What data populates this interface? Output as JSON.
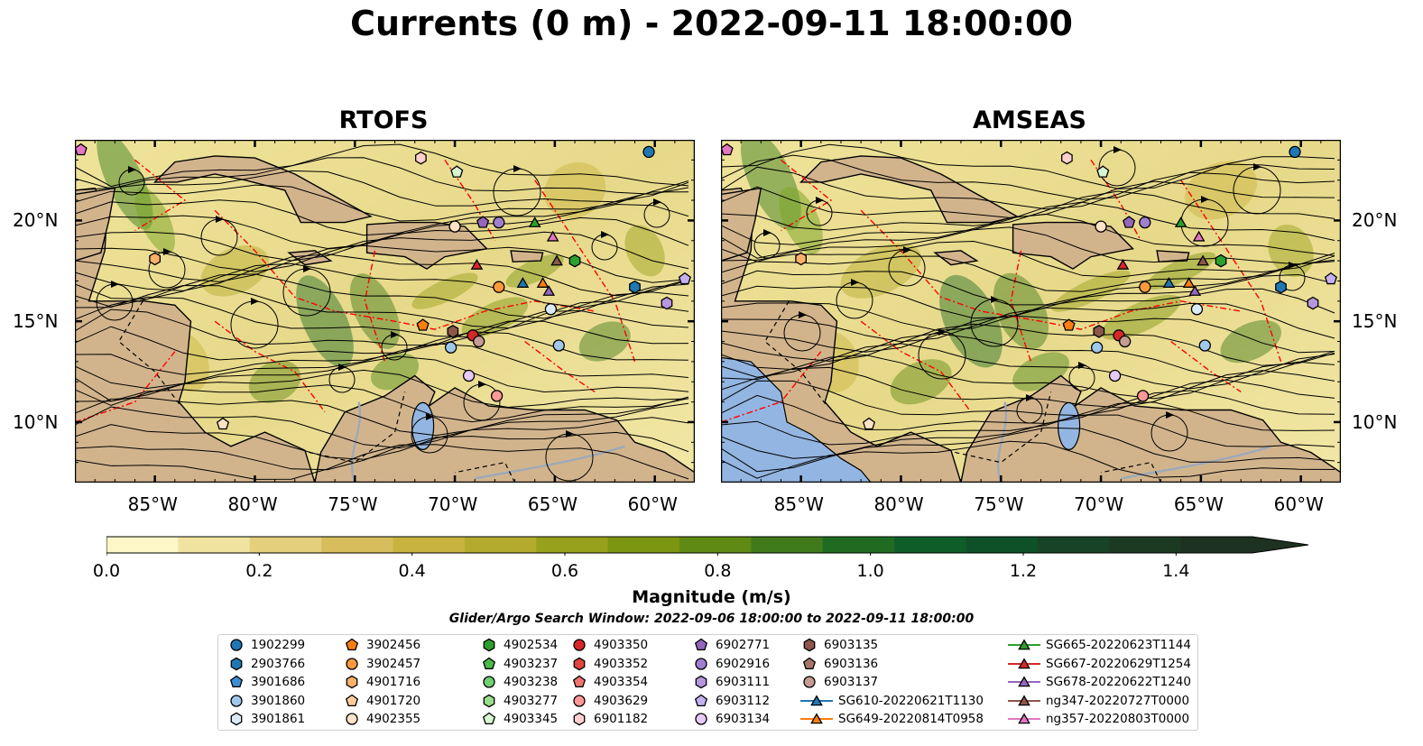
{
  "title": "Currents (0 m) - 2022-09-11 18:00:00",
  "panels": [
    {
      "title": "RTOFS"
    },
    {
      "title": "AMSEAS"
    }
  ],
  "axes": {
    "x_ticks": [
      "85°W",
      "80°W",
      "75°W",
      "70°W",
      "65°W",
      "60°W"
    ],
    "x_tick_values": [
      -85,
      -80,
      -75,
      -70,
      -65,
      -60
    ],
    "y_ticks": [
      "20°N",
      "15°N",
      "10°N"
    ],
    "y_tick_values": [
      20,
      15,
      10
    ],
    "lon_range": [
      -89,
      -58
    ],
    "lat_range": [
      7,
      24
    ]
  },
  "colorbar": {
    "label": "Magnitude (m/s)",
    "ticks": [
      "0.0",
      "0.2",
      "0.4",
      "0.6",
      "0.8",
      "1.0",
      "1.2",
      "1.4"
    ],
    "tick_values": [
      0.0,
      0.2,
      0.4,
      0.6,
      0.8,
      1.0,
      1.2,
      1.4
    ],
    "range": [
      0,
      1.5
    ],
    "extend": "max",
    "colors": [
      "#fdf7c7",
      "#f0e3a0",
      "#e3cf7c",
      "#d8bd5c",
      "#c9b340",
      "#b3ab2e",
      "#97a11b",
      "#7c9612",
      "#5f8a14",
      "#3f7a1b",
      "#1f6b22",
      "#0f5e2a",
      "#0e5028",
      "#184326",
      "#1c3a22",
      "#1d3220"
    ]
  },
  "search_window": "Glider/Argo Search Window: 2022-09-06 18:00:00 to 2022-09-11 18:00:00",
  "colors": {
    "land": "#d2b48c",
    "water_gray": "#9ea9b8",
    "lake_blue": "#93b5e1",
    "eez_line": "#ff0000",
    "streamline": "#000000"
  },
  "legend": [
    {
      "label": "1902299",
      "marker": "circle",
      "color": "#1f77b4"
    },
    {
      "label": "2903766",
      "marker": "hexagon",
      "color": "#1f77b4"
    },
    {
      "label": "3901686",
      "marker": "pentagon",
      "color": "#3d8fd1"
    },
    {
      "label": "3901860",
      "marker": "circle",
      "color": "#9fc8ea"
    },
    {
      "label": "3901861",
      "marker": "hexagon",
      "color": "#dbeaf7"
    },
    {
      "label": "3902456",
      "marker": "pentagon",
      "color": "#ff7f0e"
    },
    {
      "label": "3902457",
      "marker": "circle",
      "color": "#ff9a3c"
    },
    {
      "label": "4901716",
      "marker": "hexagon",
      "color": "#ffb06b"
    },
    {
      "label": "4901720",
      "marker": "pentagon",
      "color": "#ffcc99"
    },
    {
      "label": "4902355",
      "marker": "circle",
      "color": "#ffe3c6"
    },
    {
      "label": "4902534",
      "marker": "hexagon",
      "color": "#2ca02c"
    },
    {
      "label": "4903237",
      "marker": "pentagon",
      "color": "#4cb84c"
    },
    {
      "label": "4903238",
      "marker": "circle",
      "color": "#6fd06f"
    },
    {
      "label": "4903277",
      "marker": "hexagon",
      "color": "#98df8a"
    },
    {
      "label": "4903345",
      "marker": "pentagon",
      "color": "#d7f5d0"
    },
    {
      "label": "4903350",
      "marker": "circle",
      "color": "#d62728"
    },
    {
      "label": "4903352",
      "marker": "hexagon",
      "color": "#e0453f"
    },
    {
      "label": "4903354",
      "marker": "pentagon",
      "color": "#f07370"
    },
    {
      "label": "4903629",
      "marker": "circle",
      "color": "#ff9896"
    },
    {
      "label": "6901182",
      "marker": "hexagon",
      "color": "#ffd0cf"
    },
    {
      "label": "6902771",
      "marker": "pentagon",
      "color": "#9467bd"
    },
    {
      "label": "6902916",
      "marker": "circle",
      "color": "#a07fd0"
    },
    {
      "label": "6903111",
      "marker": "hexagon",
      "color": "#b696de"
    },
    {
      "label": "6903112",
      "marker": "pentagon",
      "color": "#c5b0f0"
    },
    {
      "label": "6903134",
      "marker": "circle",
      "color": "#e5c9f7"
    },
    {
      "label": "6903135",
      "marker": "hexagon",
      "color": "#8c564b"
    },
    {
      "label": "6903136",
      "marker": "pentagon",
      "color": "#a8746a"
    },
    {
      "label": "6903137",
      "marker": "circle",
      "color": "#c49c94"
    },
    {
      "label": "SG610-20220621T1130",
      "marker": "triangle",
      "color": "#1f77b4",
      "line": true
    },
    {
      "label": "SG649-20220814T0958",
      "marker": "triangle",
      "color": "#ff7f0e",
      "line": true
    },
    {
      "label": "SG665-20220623T1144",
      "marker": "triangle",
      "color": "#2ca02c",
      "line": true
    },
    {
      "label": "SG667-20220629T1254",
      "marker": "triangle",
      "color": "#d62728",
      "line": true
    },
    {
      "label": "SG678-20220622T1240",
      "marker": "triangle",
      "color": "#9467bd",
      "line": true
    },
    {
      "label": "ng347-20220727T0000",
      "marker": "triangle",
      "color": "#8c564b",
      "line": true
    },
    {
      "label": "ng357-20220803T0000",
      "marker": "triangle",
      "color": "#e377c2",
      "line": true
    }
  ],
  "markers_on_map": [
    {
      "lon": -60.3,
      "lat": 23.4,
      "marker": "circle",
      "color": "#1f77b4"
    },
    {
      "lon": -61.0,
      "lat": 16.7,
      "marker": "hexagon",
      "color": "#1f77b4"
    },
    {
      "lon": -64.8,
      "lat": 13.8,
      "marker": "circle",
      "color": "#9fc8ea"
    },
    {
      "lon": -65.2,
      "lat": 15.6,
      "marker": "circle",
      "color": "#dbeaf7"
    },
    {
      "lon": -70.2,
      "lat": 13.7,
      "marker": "circle",
      "color": "#9fc8ea"
    },
    {
      "lon": -71.6,
      "lat": 14.8,
      "marker": "pentagon",
      "color": "#ff7f0e"
    },
    {
      "lon": -67.8,
      "lat": 16.7,
      "marker": "circle",
      "color": "#ff9a3c"
    },
    {
      "lon": -85.0,
      "lat": 18.1,
      "marker": "hexagon",
      "color": "#ffb06b"
    },
    {
      "lon": -81.6,
      "lat": 9.9,
      "marker": "pentagon",
      "color": "#ffe3c6"
    },
    {
      "lon": -70.0,
      "lat": 19.7,
      "marker": "circle",
      "color": "#ffe3c6"
    },
    {
      "lon": -64.0,
      "lat": 18.0,
      "marker": "hexagon",
      "color": "#2ca02c"
    },
    {
      "lon": -69.9,
      "lat": 22.4,
      "marker": "pentagon",
      "color": "#d7f5d0"
    },
    {
      "lon": -69.1,
      "lat": 14.3,
      "marker": "circle",
      "color": "#d62728"
    },
    {
      "lon": -68.8,
      "lat": 14.0,
      "marker": "circle",
      "color": "#c49c94"
    },
    {
      "lon": -67.9,
      "lat": 11.3,
      "marker": "circle",
      "color": "#ff9896"
    },
    {
      "lon": -71.7,
      "lat": 23.1,
      "marker": "hexagon",
      "color": "#ffd0cf"
    },
    {
      "lon": -68.6,
      "lat": 19.9,
      "marker": "pentagon",
      "color": "#9467bd"
    },
    {
      "lon": -67.8,
      "lat": 19.9,
      "marker": "circle",
      "color": "#a07fd0"
    },
    {
      "lon": -59.4,
      "lat": 15.9,
      "marker": "hexagon",
      "color": "#b696de"
    },
    {
      "lon": -58.5,
      "lat": 17.1,
      "marker": "pentagon",
      "color": "#c5b0f0"
    },
    {
      "lon": -69.3,
      "lat": 12.3,
      "marker": "circle",
      "color": "#e5c9f7"
    },
    {
      "lon": -70.1,
      "lat": 14.5,
      "marker": "hexagon",
      "color": "#8c564b"
    },
    {
      "lon": -88.7,
      "lat": 23.5,
      "marker": "pentagon",
      "color": "#e377c2"
    },
    {
      "lon": -66.6,
      "lat": 16.9,
      "marker": "triangle",
      "color": "#1f77b4"
    },
    {
      "lon": -65.6,
      "lat": 16.9,
      "marker": "triangle",
      "color": "#ff7f0e"
    },
    {
      "lon": -66.0,
      "lat": 19.9,
      "marker": "triangle",
      "color": "#2ca02c"
    },
    {
      "lon": -68.9,
      "lat": 17.8,
      "marker": "triangle",
      "color": "#d62728"
    },
    {
      "lon": -65.3,
      "lat": 16.5,
      "marker": "triangle",
      "color": "#9467bd"
    },
    {
      "lon": -64.9,
      "lat": 18.0,
      "marker": "triangle",
      "color": "#8c564b"
    },
    {
      "lon": -65.1,
      "lat": 19.2,
      "marker": "triangle",
      "color": "#e377c2"
    }
  ]
}
